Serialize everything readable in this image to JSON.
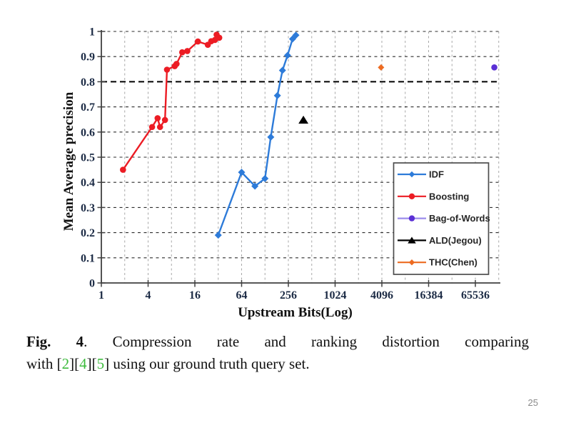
{
  "page": {
    "number": "25"
  },
  "caption": {
    "citation_color": "#3dbb3d",
    "line1": [
      {
        "text": "Fig. 4",
        "bold": true
      },
      {
        "text": ".  Compression rate and ranking distortion comparing",
        "bold": false
      }
    ],
    "line2": [
      {
        "text": "with [",
        "bold": false
      },
      {
        "text": "2",
        "cite": true
      },
      {
        "text": "]["
      },
      {
        "text": "4",
        "cite": true
      },
      {
        "text": "]["
      },
      {
        "text": "5",
        "cite": true
      },
      {
        "text": "] using our ground truth query set."
      }
    ]
  },
  "chart_data": {
    "type": "line",
    "title": "",
    "xlabel": "Upstream Bits(Log)",
    "ylabel": "Mean Average precision",
    "x_scale": "log2",
    "xlim": [
      1,
      131072
    ],
    "ylim": [
      0,
      1
    ],
    "x_ticks": [
      1,
      4,
      16,
      64,
      256,
      1024,
      4096,
      16384,
      65536
    ],
    "y_ticks": [
      0,
      0.1,
      0.2,
      0.3,
      0.4,
      0.5,
      0.6,
      0.7,
      0.8,
      0.9,
      1
    ],
    "y_tick_labels": [
      "0",
      "0.1",
      "0.2",
      "0.3",
      "0.4",
      "0.5",
      "0.6",
      "0.7",
      "0.8",
      "0.9",
      "1"
    ],
    "grid": {
      "horizontal": true,
      "vertical": true,
      "highlight_y": 0.8
    },
    "legend": {
      "position": "inside-bottom-right",
      "items": [
        "IDF",
        "Boosting",
        "Bag-of-Words",
        "ALD(Jegou)",
        "THC(Chen)"
      ]
    },
    "series": [
      {
        "name": "IDF",
        "color": "#2d7bd9",
        "marker": "diamond",
        "points": [
          [
            32,
            0.19
          ],
          [
            64,
            0.44
          ],
          [
            95,
            0.385
          ],
          [
            128,
            0.415
          ],
          [
            152,
            0.58
          ],
          [
            185,
            0.745
          ],
          [
            215,
            0.845
          ],
          [
            250,
            0.905
          ],
          [
            290,
            0.97
          ],
          [
            320,
            0.985
          ]
        ]
      },
      {
        "name": "Boosting",
        "color": "#ec1c24",
        "marker": "circle",
        "points": [
          [
            1.9,
            0.45
          ],
          [
            4.5,
            0.62
          ],
          [
            5.3,
            0.655
          ],
          [
            5.7,
            0.62
          ],
          [
            6.6,
            0.648
          ],
          [
            7,
            0.848
          ],
          [
            8.8,
            0.862
          ],
          [
            9.3,
            0.871
          ],
          [
            11,
            0.917
          ],
          [
            12.8,
            0.922
          ],
          [
            17.5,
            0.96
          ],
          [
            23.5,
            0.947
          ],
          [
            26,
            0.961
          ],
          [
            29,
            0.966
          ],
          [
            30.5,
            0.987
          ],
          [
            33,
            0.975
          ]
        ]
      },
      {
        "name": "Bag-of-Words",
        "color": "#5b30d5",
        "line_color": "#9b8cec",
        "marker": "circle",
        "points": [
          [
            115000,
            0.857
          ]
        ]
      },
      {
        "name": "ALD(Jegou)",
        "color": "#000000",
        "marker": "triangle",
        "points": [
          [
            400,
            0.648
          ]
        ]
      },
      {
        "name": "THC(Chen)",
        "color": "#ed6b21",
        "marker": "diamond",
        "points": [
          [
            4000,
            0.857
          ]
        ]
      }
    ]
  }
}
